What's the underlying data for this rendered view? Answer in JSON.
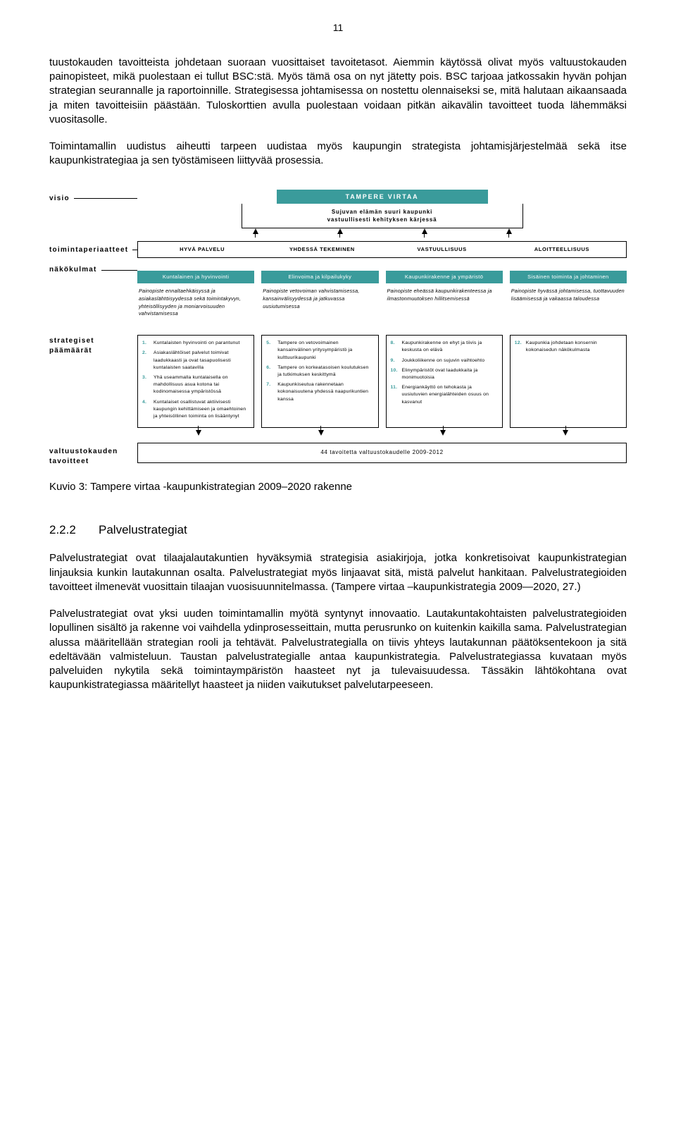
{
  "page_number": "11",
  "paragraphs": {
    "p1": "tuustokauden tavoitteista johdetaan suoraan vuosittaiset tavoitetasot. Aiemmin käytössä olivat myös valtuustokauden painopisteet, mikä puolestaan ei tullut BSC:stä. Myös tämä osa on nyt jätetty pois. BSC tarjoaa jatkossakin hyvän pohjan strategian seurannalle ja raportoinnille. Strategisessa johtamisessa on nostettu olennaiseksi se, mitä halutaan aikaansaada ja miten tavoitteisiin päästään. Tuloskorttien avulla puolestaan voidaan pitkän aikavälin tavoitteet tuoda lähemmäksi vuositasolle.",
    "p2": "Toimintamallin uudistus aiheutti tarpeen uudistaa myös kaupungin strategista johtamisjärjestelmää sekä itse kaupunkistrategiaa ja sen työstämiseen liittyvää prosessia.",
    "p3": "Palvelustrategiat ovat tilaajalautakuntien hyväksymiä strategisia asiakirjoja, jotka konkretisoivat kaupunkistrategian linjauksia kunkin lautakunnan osalta. Palvelustrategiat myös linjaavat sitä, mistä palvelut hankitaan. Palvelustrategioiden tavoitteet ilmenevät vuosittain tilaajan vuosisuunnitelmassa. (Tampere virtaa –kaupunkistrategia 2009—2020, 27.)",
    "p4": "Palvelustrategiat ovat yksi uuden toimintamallin myötä syntynyt innovaatio. Lautakuntakohtaisten palvelustrategioiden lopullinen sisältö ja rakenne voi vaihdella ydinprosesseittain, mutta perusrunko on kuitenkin kaikilla sama. Palvelustrategian alussa määritellään strategian rooli ja tehtävät. Palvelustrategialla on tiivis yhteys lautakunnan päätöksentekoon ja sitä edeltävään valmisteluun. Taustan palvelustrategialle antaa kaupunkistrategia. Palvelustrategiassa kuvataan myös palveluiden nykytila sekä toimintaympäristön haasteet nyt ja tulevaisuudessa. Tässäkin lähtökohtana ovat kaupunkistrategiassa määritellyt haasteet ja niiden vaikutukset palvelutarpeeseen."
  },
  "diagram": {
    "labels": {
      "visio": "visio",
      "toimintaperiaatteet": "toimintaperiaatteet",
      "nakokulmat": "näkökulmat",
      "strategiset": "strategiset päämäärät",
      "valtuusto": "valtuustokauden tavoitteet"
    },
    "vision_title": "TAMPERE VIRTAA",
    "vision_sub1": "Sujuvan elämän suuri kaupunki",
    "vision_sub2": "vastuullisesti kehityksen kärjessä",
    "principles": [
      "HYVÄ PALVELU",
      "YHDESSÄ TEKEMINEN",
      "VASTUULLISUUS",
      "ALOITTEELLISUUS"
    ],
    "perspectives": [
      {
        "head": "Kuntalainen ja hyvinvointi",
        "body": "Painopiste ennalta­ehkäisyssä ja asiakaslähtöisyydessä sekä toimintakyvyn, yhteisöllisyyden ja moniarvoisuuden vahvistamisessa"
      },
      {
        "head": "Elinvoima ja kilpailukyky",
        "body": "Painopiste vetovoiman vahvistamisessa, kansainvälisyydessä ja jatkuvassa uusiutumisessa"
      },
      {
        "head": "Kaupunkirakenne ja ympäristö",
        "body": "Painopiste eheässä kaupunki­rakenteessa ja ilmastonmuutoksen hillitsemisessä"
      },
      {
        "head": "Sisäinen toiminta ja johtaminen",
        "body": "Painopiste hyvässä johtamisessa, tuottavuuden lisäämisessä ja vakaassa taloudessa"
      }
    ],
    "goals": [
      [
        {
          "n": "1.",
          "t": "Kuntalaisten hyvinvointi on parantunut"
        },
        {
          "n": "2.",
          "t": "Asiakaslähtöiset palvelut toimivat laadukkaasti ja ovat tasapuolisesti kuntalaisten saatavilla"
        },
        {
          "n": "3.",
          "t": "Yhä useammalla kuntalaisella on mahdollisuus asua kotona tai kodinomaisessa ympäristössä"
        },
        {
          "n": "4.",
          "t": "Kuntalaiset osallistuvat aktiivisesti kaupungin kehittämiseen ja omaehtoinen ja yhteisöllinen toiminta on lisääntynyt"
        }
      ],
      [
        {
          "n": "5.",
          "t": "Tampere on vetovoimainen kansainvälinen yritysympäristö ja kulttuurikaupunki"
        },
        {
          "n": "6.",
          "t": "Tampere on korkeatasoisen koulutuksen ja tutkimuksen keskittymä"
        },
        {
          "n": "7.",
          "t": "Kaupunkiseutua rakennetaan kokonaisuutena yhdessä naapurikuntien kanssa"
        }
      ],
      [
        {
          "n": "8.",
          "t": "Kaupunkirakenne on ehyt ja tiivis ja keskusta on elävä"
        },
        {
          "n": "9.",
          "t": "Joukkoliikenne on sujuvin vaihtoehto"
        },
        {
          "n": "10.",
          "t": "Elinympäristöt ovat laadukkaita ja monimuotoisia"
        },
        {
          "n": "11.",
          "t": "Energiankäyttö on tehokasta ja uusiutuvien energialähteiden osuus on kasvanut"
        }
      ],
      [
        {
          "n": "12.",
          "t": "Kaupunkia johdetaan konsernin kokonaisedun näkökulmasta"
        }
      ]
    ],
    "valtuusto_box": "44 tavoitetta valtuustokaudelle 2009-2012",
    "colors": {
      "teal": "#3a9b9b",
      "text": "#000000",
      "bg": "#ffffff"
    }
  },
  "caption": "Kuvio 3: Tampere virtaa -kaupunkistrategian 2009–2020 rakenne",
  "section": {
    "num": "2.2.2",
    "title": "Palvelustrategiat"
  }
}
